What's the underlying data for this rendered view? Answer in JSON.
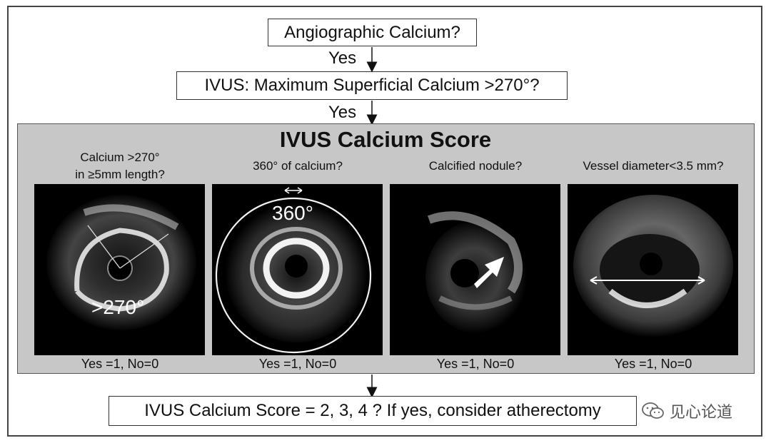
{
  "flow": {
    "q1": "Angiographic Calcium?",
    "yes1": "Yes",
    "q2": "IVUS: Maximum Superficial Calcium >270°?",
    "yes2": "Yes",
    "final": "IVUS Calcium Score = 2, 3, 4 ? If yes, consider atherectomy"
  },
  "panel": {
    "title": "IVUS Calcium Score",
    "criteria": [
      {
        "label_line1": "Calcium >270°",
        "label_line2": "in ≥5mm length?",
        "image_label": ">270°",
        "score": "Yes =1, No=0"
      },
      {
        "label_line1": "360° of calcium?",
        "image_label": "360°",
        "score": "Yes =1, No=0"
      },
      {
        "label_line1": "Calcified nodule?",
        "score": "Yes =1, No=0"
      },
      {
        "label_line1": "Vessel diameter<3.5 mm?",
        "score": "Yes =1, No=0"
      }
    ]
  },
  "watermark": {
    "text": "见心论道",
    "icon": "wechat-icon"
  }
}
